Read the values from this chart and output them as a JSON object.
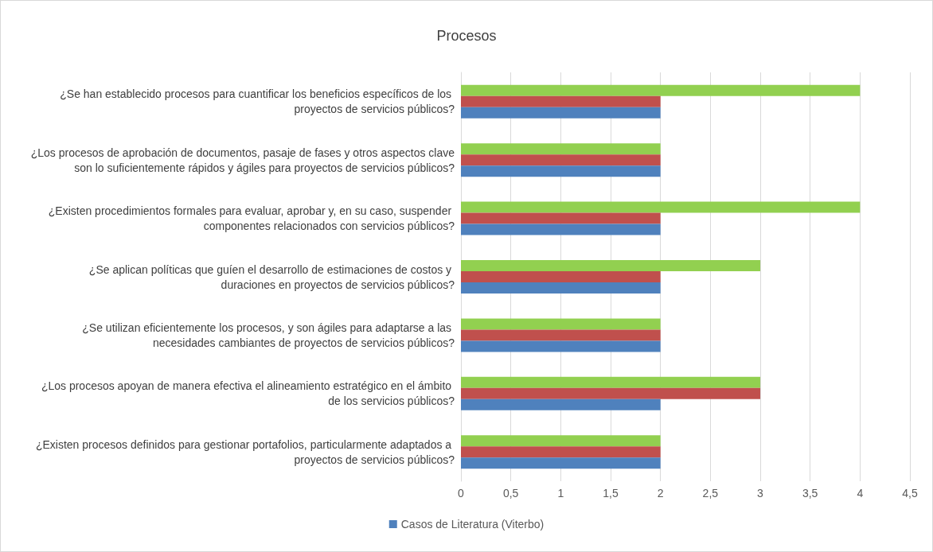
{
  "chart_data": {
    "type": "bar",
    "orientation": "horizontal",
    "title": "Procesos",
    "categories": [
      "¿Se han establecido procesos para cuantificar los beneficios específicos de los proyectos de servicios públicos?",
      "¿Los procesos de aprobación de documentos, pasaje de fases y otros aspectos clave son lo suficientemente rápidos y ágiles para proyectos de servicios públicos?",
      "¿Existen procedimientos formales para evaluar, aprobar y, en su caso, suspender componentes relacionados con servicios públicos?",
      "¿Se aplican políticas que guíen el desarrollo de estimaciones de costos y duraciones en proyectos de servicios públicos?",
      "¿Se utilizan eficientemente los procesos, y son ágiles para adaptarse a las necesidades cambiantes de proyectos de servicios públicos?",
      "¿Los procesos apoyan de manera efectiva el alineamiento estratégico en el ámbito de los servicios públicos?",
      "¿Existen procesos definidos para gestionar portafolios, particularmente adaptados a proyectos de servicios públicos?"
    ],
    "series": [
      {
        "color": "#92d050",
        "values": [
          4,
          2,
          4,
          3,
          2,
          3,
          2
        ]
      },
      {
        "color": "#c0504d",
        "values": [
          2,
          2,
          2,
          2,
          2,
          3,
          2
        ]
      },
      {
        "name": "Casos de Literatura (Viterbo)",
        "color": "#4f81bd",
        "values": [
          2,
          2,
          2,
          2,
          2,
          2,
          2
        ]
      }
    ],
    "xlim": [
      0,
      4.5
    ],
    "xticks": [
      0,
      {
        "value": 0.5,
        "label": "0,5"
      },
      1,
      {
        "value": 1.5,
        "label": "1,5"
      },
      2,
      {
        "value": 2.5,
        "label": "2,5"
      },
      3,
      {
        "value": 3.5,
        "label": "3,5"
      },
      4,
      {
        "value": 4.5,
        "label": "4,5"
      }
    ],
    "grid": "x",
    "legend": "bottom"
  }
}
